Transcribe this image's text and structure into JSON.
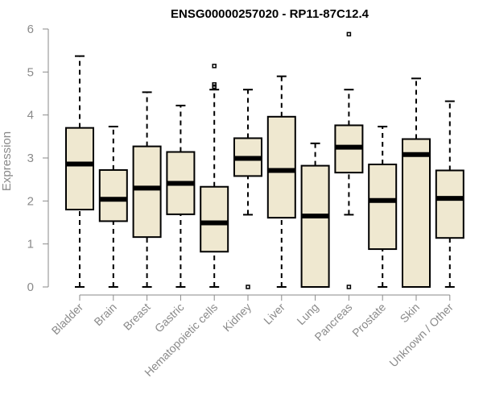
{
  "chart_data": {
    "type": "box",
    "title": "ENSG00000257020 - RP11-87C12.4",
    "ylabel": "Expression",
    "xlabel": "",
    "ylim": [
      0,
      6
    ],
    "yticks": [
      0,
      1,
      2,
      3,
      4,
      5,
      6
    ],
    "grid": false,
    "categories": [
      "Bladder",
      "Brain",
      "Breast",
      "Gastric",
      "Hematopoietic cells",
      "Kidney",
      "Liver",
      "Lung",
      "Pancreas",
      "Prostate",
      "Skin",
      "Unknown / Other"
    ],
    "boxes": [
      {
        "min": 0,
        "q1": 1.8,
        "median": 2.86,
        "q3": 3.7,
        "max": 5.37,
        "outliers": []
      },
      {
        "min": 0,
        "q1": 1.53,
        "median": 2.04,
        "q3": 2.72,
        "max": 3.73,
        "outliers": []
      },
      {
        "min": 0,
        "q1": 1.16,
        "median": 2.3,
        "q3": 3.27,
        "max": 4.53,
        "outliers": []
      },
      {
        "min": 0,
        "q1": 1.69,
        "median": 2.41,
        "q3": 3.14,
        "max": 4.22,
        "outliers": []
      },
      {
        "min": 0,
        "q1": 0.82,
        "median": 1.49,
        "q3": 2.33,
        "max": 4.59,
        "outliers": [
          4.66,
          4.71,
          5.14
        ]
      },
      {
        "min": 1.68,
        "q1": 2.58,
        "median": 2.99,
        "q3": 3.46,
        "max": 4.59,
        "outliers": [
          0
        ]
      },
      {
        "min": 0,
        "q1": 1.61,
        "median": 2.71,
        "q3": 3.96,
        "max": 4.9,
        "outliers": []
      },
      {
        "min": 0,
        "q1": 0,
        "median": 1.65,
        "q3": 2.82,
        "max": 3.34,
        "outliers": []
      },
      {
        "min": 1.68,
        "q1": 2.66,
        "median": 3.25,
        "q3": 3.76,
        "max": 4.59,
        "outliers": [
          0,
          5.88
        ]
      },
      {
        "min": 0,
        "q1": 0.88,
        "median": 2.01,
        "q3": 2.85,
        "max": 3.73,
        "outliers": []
      },
      {
        "min": 0,
        "q1": 0,
        "median": 3.08,
        "q3": 3.44,
        "max": 4.85,
        "outliers": []
      },
      {
        "min": 0,
        "q1": 1.14,
        "median": 2.06,
        "q3": 2.71,
        "max": 4.32,
        "outliers": []
      }
    ],
    "colors": {
      "box_fill": "#efe8d0",
      "box_stroke": "#000000",
      "axis": "#8a8a8a",
      "tick_text": "#8a8a8a",
      "title": "#000000"
    }
  }
}
